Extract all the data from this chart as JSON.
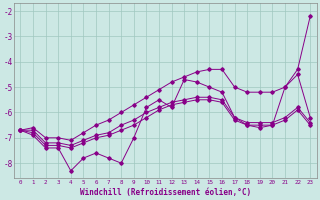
{
  "xlabel": "Windchill (Refroidissement éolien,°C)",
  "background_color": "#cce8e4",
  "grid_color": "#a0c8c0",
  "line_color": "#880088",
  "x_values": [
    0,
    1,
    2,
    3,
    4,
    5,
    6,
    7,
    8,
    9,
    10,
    11,
    12,
    13,
    14,
    15,
    16,
    17,
    18,
    19,
    20,
    21,
    22,
    23
  ],
  "line1": [
    -6.7,
    -6.9,
    -7.4,
    -7.4,
    -8.3,
    -7.8,
    -7.6,
    -7.8,
    -8.0,
    -7.0,
    -5.8,
    -5.5,
    -5.8,
    -4.7,
    -4.8,
    -5.0,
    -5.2,
    -6.2,
    -6.5,
    -6.6,
    -6.5,
    -5.0,
    -4.3,
    -2.2
  ],
  "line2": [
    -6.7,
    -6.8,
    -7.3,
    -7.3,
    -7.4,
    -7.2,
    -7.0,
    -6.9,
    -6.7,
    -6.5,
    -6.2,
    -5.9,
    -5.7,
    -5.6,
    -5.5,
    -5.5,
    -5.6,
    -6.3,
    -6.5,
    -6.5,
    -6.5,
    -6.3,
    -5.9,
    -6.5
  ],
  "line3": [
    -6.7,
    -6.7,
    -7.2,
    -7.2,
    -7.3,
    -7.1,
    -6.9,
    -6.8,
    -6.5,
    -6.3,
    -6.0,
    -5.8,
    -5.6,
    -5.5,
    -5.4,
    -5.4,
    -5.5,
    -6.2,
    -6.4,
    -6.4,
    -6.4,
    -6.2,
    -5.8,
    -6.4
  ],
  "line4": [
    -6.7,
    -6.6,
    -7.0,
    -7.0,
    -7.1,
    -6.8,
    -6.5,
    -6.3,
    -6.0,
    -5.7,
    -5.4,
    -5.1,
    -4.8,
    -4.6,
    -4.4,
    -4.3,
    -4.3,
    -5.0,
    -5.2,
    -5.2,
    -5.2,
    -5.0,
    -4.5,
    -6.2
  ],
  "ylim": [
    -8.6,
    -1.7
  ],
  "xlim": [
    -0.5,
    23.5
  ],
  "yticks": [
    -8,
    -7,
    -6,
    -5,
    -4,
    -3,
    -2
  ],
  "xticks": [
    0,
    1,
    2,
    3,
    4,
    5,
    6,
    7,
    8,
    9,
    10,
    11,
    12,
    13,
    14,
    15,
    16,
    17,
    18,
    19,
    20,
    21,
    22,
    23
  ]
}
